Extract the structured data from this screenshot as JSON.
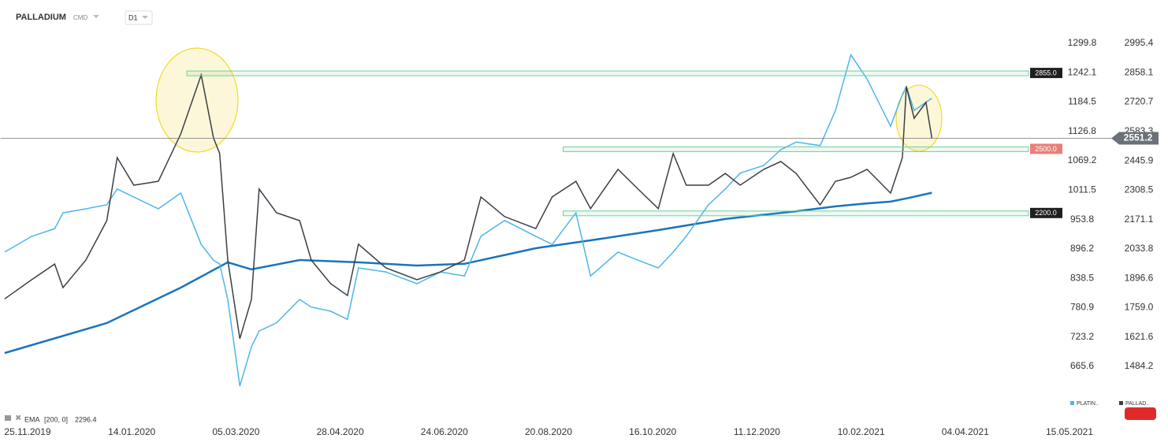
{
  "header": {
    "symbol": "PALLADIUM",
    "market": "CMD",
    "interval": "D1"
  },
  "chart_data": {
    "type": "line",
    "xticks": [
      "25.11.2019",
      "14.01.2020",
      "05.03.2020",
      "28.04.2020",
      "24.06.2020",
      "20.08.2020",
      "16.10.2020",
      "11.12.2020",
      "10.02.2021",
      "04.04.2021",
      "15.05.2021"
    ],
    "xlim": [
      "12.11.2019",
      "10.05.2021"
    ],
    "ylim": [
      1263.1,
      3124.4
    ],
    "yticks": [
      2995.4,
      2858.1,
      2720.7,
      2583.3,
      2445.9,
      2308.5,
      2171.1,
      2033.8,
      1896.6,
      {
        "value": 1759,
        "label": "1759.0"
      },
      1621.6,
      1484.2
    ],
    "y2lim": [
      572.8,
      1353.9
    ],
    "y2ticks": [
      1299.8,
      1242.1,
      1184.5,
      1126.8,
      1069.2,
      1011.5,
      953.8,
      896.2,
      838.5,
      780.9,
      723.2,
      665.6
    ],
    "series": [
      {
        "name": "PLATIN..",
        "color": "#4db6ea",
        "axis": "y2",
        "x": [
          "14.11.2019",
          "27.11.2019",
          "08.12.2019",
          "12.12.2019",
          "23.12.2019",
          "02.01.2020",
          "07.01.2020",
          "15.01.2020",
          "27.01.2020",
          "07.02.2020",
          "17.02.2020",
          "23.02.2020",
          "26.02.2020",
          "01.03.2020",
          "07.03.2020",
          "13.03.2020",
          "17.03.2020",
          "26.03.2020",
          "07.04.2020",
          "13.04.2020",
          "23.04.2020",
          "02.05.2020",
          "08.05.2020",
          "23.05.2020",
          "09.06.2020",
          "22.06.2020",
          "05.07.2020",
          "14.07.2020",
          "27.07.2020",
          "13.08.2020",
          "22.08.2020",
          "04.09.2020",
          "12.09.2020",
          "27.09.2020",
          "08.10.2020",
          "19.10.2020",
          "27.10.2020",
          "03.11.2020",
          "15.11.2020",
          "24.11.2020",
          "02.12.2020",
          "15.12.2020",
          "25.12.2020",
          "03.01.2021",
          "17.01.2021",
          "26.01.2021",
          "04.02.2021",
          "13.02.2021",
          "25.02.2021",
          "03.03.2021",
          "05.03.2021",
          "09.03.2021",
          "15.03.2021",
          "18.03.2021"
        ],
        "values": [
          890,
          921,
          936,
          967,
          975,
          983,
          1014,
          998,
          975,
          1006,
          905,
          874,
          867,
          797,
          627,
          704,
          735,
          751,
          797,
          782,
          774,
          758,
          859,
          851,
          828,
          851,
          843,
          921,
          952,
          921,
          905,
          967,
          843,
          890,
          874,
          859,
          890,
          921,
          983,
          1014,
          1045,
          1060,
          1091,
          1106,
          1099,
          1168,
          1277,
          1230,
          1137,
          1199,
          1215,
          1168,
          1184,
          1192
        ]
      },
      {
        "name": "PALLAD..",
        "color": "#3a3f46",
        "x": [
          "14.11.2019",
          "27.11.2019",
          "08.12.2019",
          "12.12.2019",
          "23.12.2019",
          "02.01.2020",
          "07.01.2020",
          "15.01.2020",
          "27.01.2020",
          "07.02.2020",
          "17.02.2020",
          "23.02.2020",
          "26.02.2020",
          "01.03.2020",
          "07.03.2020",
          "13.03.2020",
          "17.03.2020",
          "26.03.2020",
          "07.04.2020",
          "13.04.2020",
          "23.04.2020",
          "02.05.2020",
          "08.05.2020",
          "23.05.2020",
          "09.06.2020",
          "22.06.2020",
          "05.07.2020",
          "14.07.2020",
          "27.07.2020",
          "13.08.2020",
          "22.08.2020",
          "04.09.2020",
          "12.09.2020",
          "27.09.2020",
          "08.10.2020",
          "19.10.2020",
          "27.10.2020",
          "03.11.2020",
          "15.11.2020",
          "24.11.2020",
          "02.12.2020",
          "15.12.2020",
          "25.12.2020",
          "03.01.2021",
          "17.01.2021",
          "26.01.2021",
          "04.02.2021",
          "13.02.2021",
          "25.02.2021",
          "03.03.2021",
          "05.03.2021",
          "09.03.2021",
          "15.03.2021",
          "18.03.2021"
        ],
        "values": [
          1800,
          1890,
          1963,
          1853,
          1982,
          2166,
          2461,
          2332,
          2350,
          2572,
          2848,
          2553,
          2480,
          1982,
          1614,
          1798,
          2314,
          2203,
          2166,
          1982,
          1872,
          1816,
          2056,
          1945,
          1890,
          1927,
          1982,
          2277,
          2185,
          2129,
          2277,
          2350,
          2222,
          2406,
          2314,
          2222,
          2480,
          2332,
          2332,
          2387,
          2332,
          2406,
          2443,
          2387,
          2240,
          2350,
          2369,
          2406,
          2295,
          2461,
          2793,
          2645,
          2719,
          2551.2
        ]
      }
    ],
    "ema": {
      "name": "EMA",
      "params": "[200, 0]",
      "value": 2296.4,
      "color": "#1b74bb",
      "x": [
        "14.11.2019",
        "02.01.2020",
        "07.02.2020",
        "01.03.2020",
        "13.03.2020",
        "07.04.2020",
        "08.05.2020",
        "09.06.2020",
        "05.07.2020",
        "13.08.2020",
        "12.09.2020",
        "19.10.2020",
        "24.11.2020",
        "03.01.2021",
        "26.01.2021",
        "13.02.2021",
        "25.02.2021",
        "05.03.2021",
        "18.03.2021"
      ],
      "values": [
        1547,
        1687,
        1853,
        1971,
        1938,
        1982,
        1971,
        1956,
        1964,
        2037,
        2074,
        2122,
        2174,
        2210,
        2233,
        2247,
        2255,
        2270,
        2296.4
      ]
    },
    "levels": [
      {
        "value": 2855,
        "label": "2855.0",
        "from": "10.02.2020",
        "color": "#1f1f1f"
      },
      {
        "value": 2500,
        "label": "2500.0",
        "from": "28.08.2020",
        "color": "#e8807a"
      },
      {
        "value": 2200,
        "label": "2200.0",
        "from": "28.08.2020",
        "color": "#1f1f1f"
      }
    ],
    "last_price": 2551.2
  }
}
